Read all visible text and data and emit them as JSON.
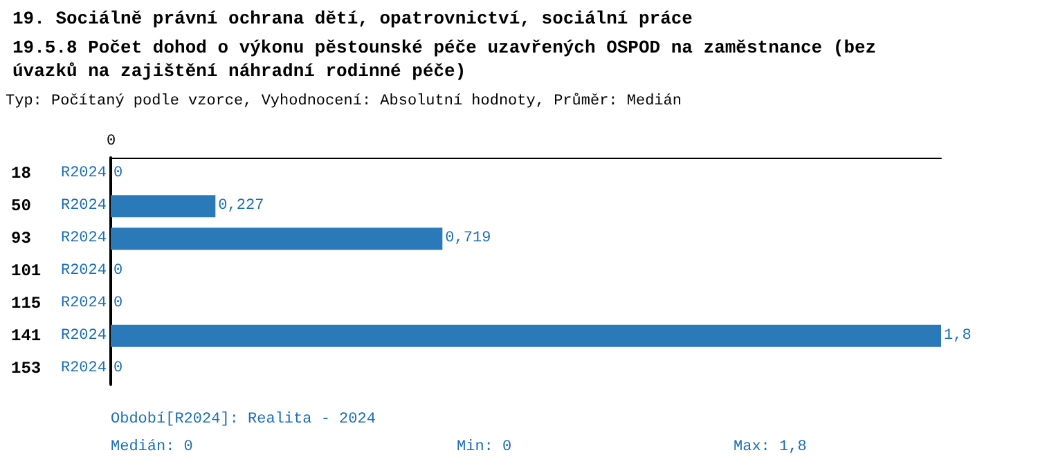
{
  "chart_data": {
    "type": "bar",
    "orientation": "horizontal",
    "title": "19. Sociálně právní ochrana dětí, opatrovnictví, sociální práce",
    "subtitle": "19.5.8 Počet dohod o výkonu pěstounské péče uzavřených OSPOD na zaměstnance (bez úvazků na zajištění náhradní rodinné péče)",
    "annotations": [
      "0",
      "Typ: Počítaný podle vzorce, Vyhodnocení: Absolutní hodnoty, Průměr: Medián",
      "Období[R2024]: Realita - 2024",
      "Medián: 0",
      "Min: 0",
      "Max: 1,8"
    ],
    "categories": [
      "18",
      "50",
      "93",
      "101",
      "115",
      "141",
      "153"
    ],
    "series": [
      {
        "name": "R2024",
        "color": "#2a7ab9",
        "values": [
          0,
          0.227,
          0.719,
          0,
          0,
          1.8,
          0
        ],
        "value_labels": [
          "0",
          "0,227",
          "0,719",
          "0",
          "0",
          "1,8",
          "0"
        ]
      }
    ],
    "grid": false,
    "legend": false
  }
}
